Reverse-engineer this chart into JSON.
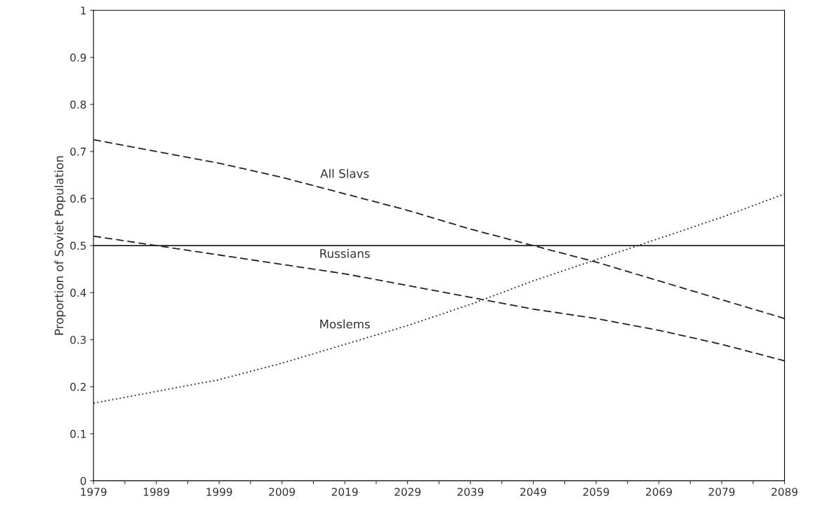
{
  "chart_data": {
    "type": "line",
    "ylabel": "Proportion of Soviet Population",
    "x": [
      1979,
      1989,
      1999,
      2009,
      2019,
      2029,
      2039,
      2049,
      2059,
      2069,
      2079,
      2089
    ],
    "series": [
      {
        "name": "All Slavs",
        "color": "#222222",
        "line_style": "dashed",
        "values": [
          0.725,
          0.7,
          0.675,
          0.645,
          0.61,
          0.575,
          0.535,
          0.5,
          0.465,
          0.425,
          0.385,
          0.345
        ]
      },
      {
        "name": "Russians",
        "color": "#222222",
        "line_style": "dashed",
        "values": [
          0.52,
          0.5,
          0.48,
          0.46,
          0.44,
          0.415,
          0.39,
          0.365,
          0.345,
          0.32,
          0.29,
          0.255
        ]
      },
      {
        "name": "Moslems",
        "color": "#222222",
        "line_style": "dotted",
        "values": [
          0.165,
          0.19,
          0.215,
          0.25,
          0.29,
          0.33,
          0.375,
          0.425,
          0.47,
          0.515,
          0.56,
          0.61
        ]
      }
    ],
    "ref_lines": [
      {
        "axis": "y",
        "value": 0.5,
        "color": "#222222",
        "line_style": "solid"
      }
    ],
    "xlim": [
      1979,
      2089
    ],
    "xticks": [
      1979,
      {
        "value": 1984,
        "label": null
      },
      1989,
      {
        "value": 1994,
        "label": null
      },
      1999,
      {
        "value": 2004,
        "label": null
      },
      2009,
      {
        "value": 2014,
        "label": null
      },
      2019,
      {
        "value": 2024,
        "label": null
      },
      2029,
      {
        "value": 2034,
        "label": null
      },
      2039,
      {
        "value": 2044,
        "label": null
      },
      2049,
      {
        "value": 2054,
        "label": null
      },
      2059,
      {
        "value": 2064,
        "label": null
      },
      2069,
      {
        "value": 2074,
        "label": null
      },
      2079,
      {
        "value": 2084,
        "label": null
      },
      2089
    ],
    "ylim": [
      0,
      1
    ],
    "yticks": [
      0,
      0.1,
      0.2,
      0.3,
      0.4,
      0.5,
      0.6,
      0.7,
      0.8,
      0.9,
      1
    ],
    "grid": false,
    "marker": "none"
  }
}
